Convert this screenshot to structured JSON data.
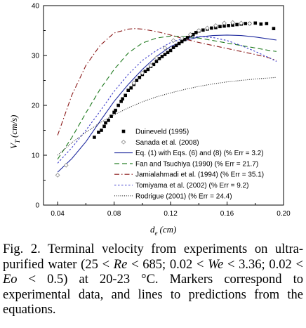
{
  "chart_data": {
    "type": "scatter",
    "xlabel_main": "d",
    "xlabel_sub": "e",
    "xlabel_unit": "(cm)",
    "ylabel_main": "V",
    "ylabel_sub": "T",
    "ylabel_unit": "(cm/s)",
    "xlim": [
      0.03,
      0.2
    ],
    "ylim": [
      0,
      40
    ],
    "x_ticks": [
      0.04,
      0.08,
      0.12,
      0.16,
      0.2
    ],
    "x_tick_labels": [
      "0.04",
      "0.08",
      "0.12",
      "0.16",
      "0.20"
    ],
    "y_ticks": [
      0,
      10,
      20,
      30,
      40
    ],
    "y_tick_labels": [
      "0",
      "10",
      "20",
      "30",
      "40"
    ],
    "grid": false,
    "legend_position": "bottom-right",
    "series": [
      {
        "name": "Duineveld (1995)",
        "kind": "markers",
        "marker": "filled-square",
        "color": "#000000",
        "x": [
          0.066,
          0.069,
          0.071,
          0.073,
          0.074,
          0.076,
          0.078,
          0.08,
          0.081,
          0.083,
          0.085,
          0.086,
          0.088,
          0.09,
          0.092,
          0.094,
          0.096,
          0.098,
          0.1,
          0.102,
          0.104,
          0.106,
          0.108,
          0.11,
          0.112,
          0.114,
          0.116,
          0.118,
          0.12,
          0.122,
          0.124,
          0.126,
          0.128,
          0.13,
          0.132,
          0.134,
          0.136,
          0.138,
          0.14,
          0.143,
          0.146,
          0.149,
          0.152,
          0.155,
          0.158,
          0.161,
          0.164,
          0.167,
          0.17,
          0.173,
          0.176,
          0.18,
          0.184,
          0.188,
          0.193
        ],
        "y": [
          13.6,
          14.6,
          15.0,
          15.8,
          16.5,
          17.0,
          17.8,
          18.6,
          19.0,
          20.0,
          20.8,
          21.3,
          22.0,
          23.0,
          23.5,
          24.2,
          25.0,
          25.6,
          26.2,
          26.8,
          27.2,
          27.8,
          28.2,
          28.8,
          29.4,
          29.8,
          30.2,
          30.6,
          31.0,
          31.6,
          32.0,
          32.4,
          32.8,
          33.2,
          33.6,
          34.0,
          34.2,
          34.6,
          34.9,
          35.1,
          35.3,
          35.5,
          35.6,
          35.8,
          35.9,
          36.0,
          36.1,
          36.2,
          36.3,
          36.4,
          36.4,
          36.5,
          36.3,
          36.4,
          35.4
        ]
      },
      {
        "name": "Sanada et al. (2008)",
        "kind": "markers",
        "marker": "open-diamond",
        "color": "#888888",
        "x": [
          0.04,
          0.046,
          0.094,
          0.1,
          0.106,
          0.11,
          0.116,
          0.122,
          0.128,
          0.134,
          0.14,
          0.146,
          0.152,
          0.158,
          0.164,
          0.17,
          0.176
        ],
        "y": [
          6.0,
          8.0,
          24.5,
          26.5,
          28.0,
          29.5,
          31.5,
          33.0,
          33.5,
          34.2,
          35.0,
          35.5,
          36.0,
          36.5,
          36.6,
          36.5,
          36.4
        ]
      },
      {
        "name": "Eq. (1) with Eqs. (6) and (8) (% Err = 3.2)",
        "kind": "line",
        "dash": "solid",
        "color": "#1f2a9e",
        "x": [
          0.04,
          0.05,
          0.06,
          0.07,
          0.08,
          0.09,
          0.1,
          0.11,
          0.12,
          0.13,
          0.14,
          0.15,
          0.16,
          0.17,
          0.18,
          0.19,
          0.195
        ],
        "y": [
          6.6,
          9.3,
          12.7,
          16.8,
          20.8,
          24.2,
          27.2,
          29.8,
          31.8,
          33.0,
          33.7,
          34.0,
          34.1,
          34.0,
          33.7,
          33.3,
          33.1
        ]
      },
      {
        "name": "Fan and Tsuchiya (1990) (% Err = 21.7)",
        "kind": "line",
        "dash": "dash",
        "color": "#1f7a1f",
        "x": [
          0.04,
          0.05,
          0.06,
          0.07,
          0.08,
          0.09,
          0.1,
          0.11,
          0.12,
          0.13,
          0.14,
          0.15,
          0.16,
          0.17,
          0.18,
          0.19,
          0.195
        ],
        "y": [
          9.2,
          13.5,
          18.5,
          23.2,
          27.2,
          30.5,
          32.5,
          33.5,
          33.9,
          33.8,
          33.5,
          33.0,
          32.5,
          32.0,
          31.5,
          31.0,
          30.8
        ]
      },
      {
        "name": "Jamialahmadi et al. (1994) (% Err = 35.1)",
        "kind": "line",
        "dash": "dashdot",
        "color": "#8b1a1a",
        "x": [
          0.04,
          0.05,
          0.06,
          0.07,
          0.08,
          0.09,
          0.095,
          0.1,
          0.11,
          0.12,
          0.13,
          0.14,
          0.15,
          0.16,
          0.17,
          0.18,
          0.19,
          0.195
        ],
        "y": [
          14.0,
          22.0,
          28.0,
          32.0,
          34.5,
          35.3,
          35.4,
          35.3,
          34.8,
          34.1,
          33.3,
          32.6,
          32.0,
          31.4,
          30.8,
          30.2,
          29.5,
          29.0
        ]
      },
      {
        "name": "Tomiyama et al. (2002) (% Err = 9.2)",
        "kind": "line",
        "dash": "dot",
        "color": "#3a3acb",
        "x": [
          0.04,
          0.05,
          0.06,
          0.07,
          0.08,
          0.09,
          0.1,
          0.11,
          0.12,
          0.13,
          0.14,
          0.15,
          0.16,
          0.17,
          0.18,
          0.19,
          0.195
        ],
        "y": [
          8.4,
          11.5,
          15.0,
          18.8,
          22.8,
          26.2,
          29.0,
          31.0,
          32.6,
          33.5,
          33.8,
          33.6,
          33.0,
          32.0,
          30.8,
          29.5,
          28.8
        ]
      },
      {
        "name": "Rodrigue (2001) (% Err = 24.4)",
        "kind": "line",
        "dash": "densedot",
        "color": "#222222",
        "x": [
          0.04,
          0.05,
          0.06,
          0.07,
          0.08,
          0.09,
          0.1,
          0.11,
          0.12,
          0.13,
          0.14,
          0.15,
          0.16,
          0.17,
          0.18,
          0.19,
          0.195
        ],
        "y": [
          10.0,
          12.5,
          14.6,
          16.5,
          18.1,
          19.5,
          20.7,
          21.7,
          22.5,
          23.2,
          23.8,
          24.3,
          24.7,
          25.0,
          25.3,
          25.5,
          25.6
        ]
      }
    ]
  },
  "caption": {
    "prefix": "Fig.   2.   Terminal velocity from experiments on ultra-purified water (25  <  ",
    "re": "Re",
    "mid1": "  <  685; 0.02  <  ",
    "we": "We",
    "mid2": "  <  3.36; 0.02  <  ",
    "eo": "Eo",
    "suffix": "  <  0.5) at 20-23 °C. Markers correspond to experimental data, and lines to predictions from the equations."
  }
}
